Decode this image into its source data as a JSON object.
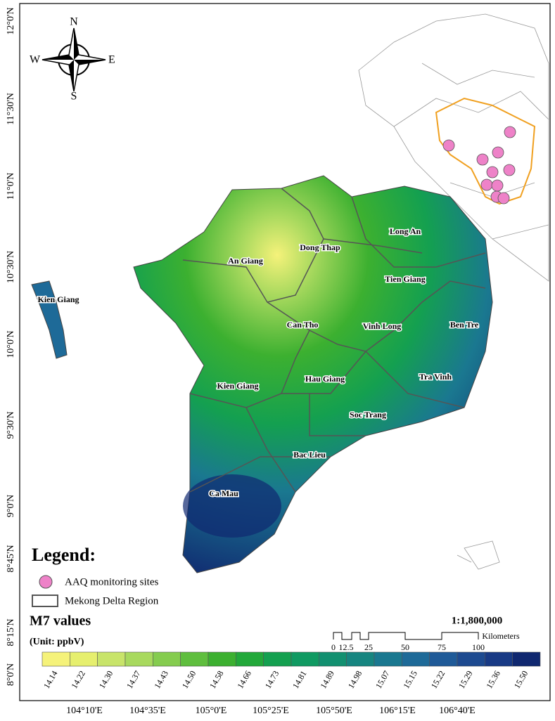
{
  "compass": {
    "n": "N",
    "e": "E",
    "s": "S",
    "w": "W"
  },
  "lat_labels": [
    "12°0'N",
    "11°30'N",
    "11°0'N",
    "10°30'N",
    "10°0'N",
    "9°30'N",
    "9°0'N",
    "8°45'N",
    "8°15'N",
    "8°0'N"
  ],
  "lon_labels": [
    "104°10'E",
    "104°35'E",
    "105°0'E",
    "105°25'E",
    "105°50'E",
    "106°15'E",
    "106°40'E"
  ],
  "provinces": [
    "Kien Giang",
    "An Giang",
    "Dong Thap",
    "Long An",
    "Tien Giang",
    "Can Tho",
    "Vinh Long",
    "Ben Tre",
    "Kien Giang",
    "Hau Giang",
    "Tra Vinh",
    "Soc Trang",
    "Bac Lieu",
    "Ca Mau"
  ],
  "legend": {
    "title": "Legend:",
    "items": [
      "AAQ monitoring sites",
      "Mekong Delta Region"
    ]
  },
  "colorbar": {
    "title": "M7 values",
    "unit": "(Unit: ppbV)",
    "labels": [
      "14.14",
      "14.22",
      "14.30",
      "14.37",
      "14.43",
      "14.50",
      "14.58",
      "14.66",
      "14.73",
      "14.81",
      "14.89",
      "14.98",
      "15.07",
      "15.15",
      "15.22",
      "15.29",
      "15.36",
      "15.50"
    ],
    "colors": [
      "#f5f27a",
      "#e6ef6e",
      "#c8e46a",
      "#a8d95e",
      "#85cc4f",
      "#5fbe3e",
      "#3cb030",
      "#22a83a",
      "#14a050",
      "#109a62",
      "#129070",
      "#168580",
      "#1a7890",
      "#1e6a98",
      "#1f5a98",
      "#1d4a90",
      "#183a85",
      "#102870"
    ]
  },
  "scale": {
    "ratio": "1:1,800,000",
    "unit": "Kilometers",
    "ticks": [
      "0",
      "12.5",
      "25",
      "50",
      "75",
      "100"
    ]
  }
}
